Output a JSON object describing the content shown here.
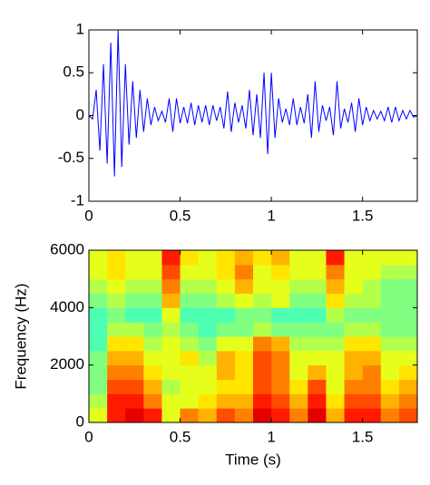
{
  "chart_data": [
    {
      "type": "line",
      "color": "#0000ff",
      "x": [
        0,
        0.02,
        0.04,
        0.06,
        0.08,
        0.1,
        0.12,
        0.14,
        0.16,
        0.18,
        0.2,
        0.22,
        0.24,
        0.26,
        0.28,
        0.3,
        0.32,
        0.34,
        0.36,
        0.38,
        0.4,
        0.42,
        0.44,
        0.46,
        0.48,
        0.5,
        0.52,
        0.54,
        0.56,
        0.58,
        0.6,
        0.62,
        0.64,
        0.66,
        0.68,
        0.7,
        0.72,
        0.74,
        0.76,
        0.78,
        0.8,
        0.82,
        0.84,
        0.86,
        0.88,
        0.9,
        0.92,
        0.94,
        0.96,
        0.98,
        1,
        1.02,
        1.04,
        1.06,
        1.08,
        1.1,
        1.12,
        1.14,
        1.16,
        1.18,
        1.2,
        1.22,
        1.24,
        1.26,
        1.28,
        1.3,
        1.32,
        1.34,
        1.36,
        1.38,
        1.4,
        1.42,
        1.44,
        1.46,
        1.48,
        1.5,
        1.52,
        1.54,
        1.56,
        1.58,
        1.6,
        1.62,
        1.64,
        1.66,
        1.68,
        1.7,
        1.72,
        1.74,
        1.76,
        1.78,
        1.8
      ],
      "values": [
        0,
        -0.04,
        0.3,
        -0.41,
        0.6,
        -0.56,
        0.85,
        -0.71,
        1,
        -0.6,
        0.6,
        -0.34,
        0.4,
        -0.26,
        0.3,
        -0.19,
        0.2,
        -0.11,
        0.1,
        -0.06,
        0.05,
        -0.08,
        0.2,
        -0.19,
        0.2,
        -0.09,
        0.1,
        -0.09,
        0.15,
        -0.11,
        0.12,
        -0.08,
        0.12,
        -0.11,
        0.12,
        -0.06,
        0.1,
        -0.15,
        0.28,
        -0.19,
        0.15,
        -0.08,
        0.12,
        -0.15,
        0.3,
        -0.23,
        0.25,
        -0.26,
        0.5,
        -0.45,
        0.5,
        -0.26,
        0.2,
        -0.08,
        0.08,
        -0.11,
        0.2,
        -0.11,
        0.1,
        -0.09,
        0.25,
        -0.26,
        0.4,
        -0.19,
        0.12,
        -0.06,
        0.1,
        -0.23,
        0.4,
        -0.15,
        0.08,
        -0.08,
        0.15,
        -0.19,
        0.2,
        -0.11,
        0.1,
        -0.06,
        0.06,
        -0.04,
        0.05,
        -0.06,
        0.1,
        -0.08,
        0.1,
        -0.06,
        0.06,
        -0.04,
        0.06,
        -0.02,
        0
      ],
      "xlim": [
        0,
        1.8
      ],
      "xticks": [
        0,
        0.5,
        1,
        1.5
      ],
      "ylim": [
        -1,
        1
      ],
      "yticks": [
        -1,
        -0.5,
        0,
        0.5,
        1
      ]
    },
    {
      "type": "heatmap",
      "colormap": "jet",
      "clim": [
        0,
        1
      ],
      "x_label": "Time (s)",
      "y_label": "Frequency (Hz)",
      "x": [
        0.05,
        0.15,
        0.25,
        0.35,
        0.45,
        0.55,
        0.65,
        0.75,
        0.85,
        0.95,
        1.05,
        1.15,
        1.25,
        1.35,
        1.45,
        1.55,
        1.65,
        1.75
      ],
      "y": [
        250,
        750,
        1250,
        1750,
        2250,
        2750,
        3250,
        3750,
        4250,
        4750,
        5250,
        5750
      ],
      "values": [
        [
          0.6,
          0.85,
          0.9,
          0.85,
          0.6,
          0.75,
          0.7,
          0.8,
          0.75,
          0.9,
          0.85,
          0.75,
          0.9,
          0.7,
          0.85,
          0.85,
          0.75,
          0.8
        ],
        [
          0.55,
          0.85,
          0.85,
          0.75,
          0.6,
          0.6,
          0.65,
          0.7,
          0.7,
          0.85,
          0.8,
          0.7,
          0.85,
          0.65,
          0.8,
          0.8,
          0.7,
          0.75
        ],
        [
          0.5,
          0.8,
          0.8,
          0.7,
          0.55,
          0.6,
          0.6,
          0.65,
          0.65,
          0.8,
          0.75,
          0.65,
          0.8,
          0.6,
          0.75,
          0.75,
          0.65,
          0.7
        ],
        [
          0.5,
          0.75,
          0.75,
          0.65,
          0.6,
          0.6,
          0.6,
          0.7,
          0.65,
          0.8,
          0.75,
          0.6,
          0.7,
          0.6,
          0.7,
          0.75,
          0.6,
          0.65
        ],
        [
          0.5,
          0.7,
          0.7,
          0.6,
          0.6,
          0.65,
          0.55,
          0.7,
          0.65,
          0.8,
          0.75,
          0.6,
          0.6,
          0.6,
          0.7,
          0.7,
          0.6,
          0.6
        ],
        [
          0.45,
          0.65,
          0.65,
          0.55,
          0.6,
          0.55,
          0.5,
          0.6,
          0.6,
          0.75,
          0.7,
          0.55,
          0.55,
          0.55,
          0.65,
          0.65,
          0.55,
          0.55
        ],
        [
          0.45,
          0.55,
          0.55,
          0.5,
          0.55,
          0.5,
          0.45,
          0.5,
          0.5,
          0.55,
          0.5,
          0.5,
          0.5,
          0.5,
          0.55,
          0.55,
          0.5,
          0.5
        ],
        [
          0.45,
          0.5,
          0.45,
          0.45,
          0.6,
          0.45,
          0.45,
          0.45,
          0.5,
          0.5,
          0.45,
          0.45,
          0.45,
          0.55,
          0.5,
          0.5,
          0.5,
          0.5
        ],
        [
          0.5,
          0.55,
          0.5,
          0.5,
          0.7,
          0.5,
          0.5,
          0.55,
          0.6,
          0.55,
          0.6,
          0.5,
          0.5,
          0.65,
          0.55,
          0.55,
          0.5,
          0.5
        ],
        [
          0.55,
          0.6,
          0.55,
          0.55,
          0.75,
          0.55,
          0.55,
          0.6,
          0.7,
          0.6,
          0.6,
          0.55,
          0.55,
          0.7,
          0.6,
          0.55,
          0.5,
          0.5
        ],
        [
          0.6,
          0.65,
          0.6,
          0.6,
          0.8,
          0.6,
          0.6,
          0.65,
          0.75,
          0.6,
          0.65,
          0.6,
          0.6,
          0.75,
          0.6,
          0.6,
          0.55,
          0.55
        ],
        [
          0.6,
          0.65,
          0.6,
          0.6,
          0.85,
          0.65,
          0.6,
          0.65,
          0.7,
          0.65,
          0.7,
          0.6,
          0.6,
          0.85,
          0.6,
          0.6,
          0.6,
          0.6
        ]
      ],
      "xlim": [
        0,
        1.8
      ],
      "xticks": [
        0,
        0.5,
        1,
        1.5
      ],
      "ylim": [
        0,
        6000
      ],
      "yticks": [
        0,
        2000,
        4000,
        6000
      ]
    }
  ]
}
